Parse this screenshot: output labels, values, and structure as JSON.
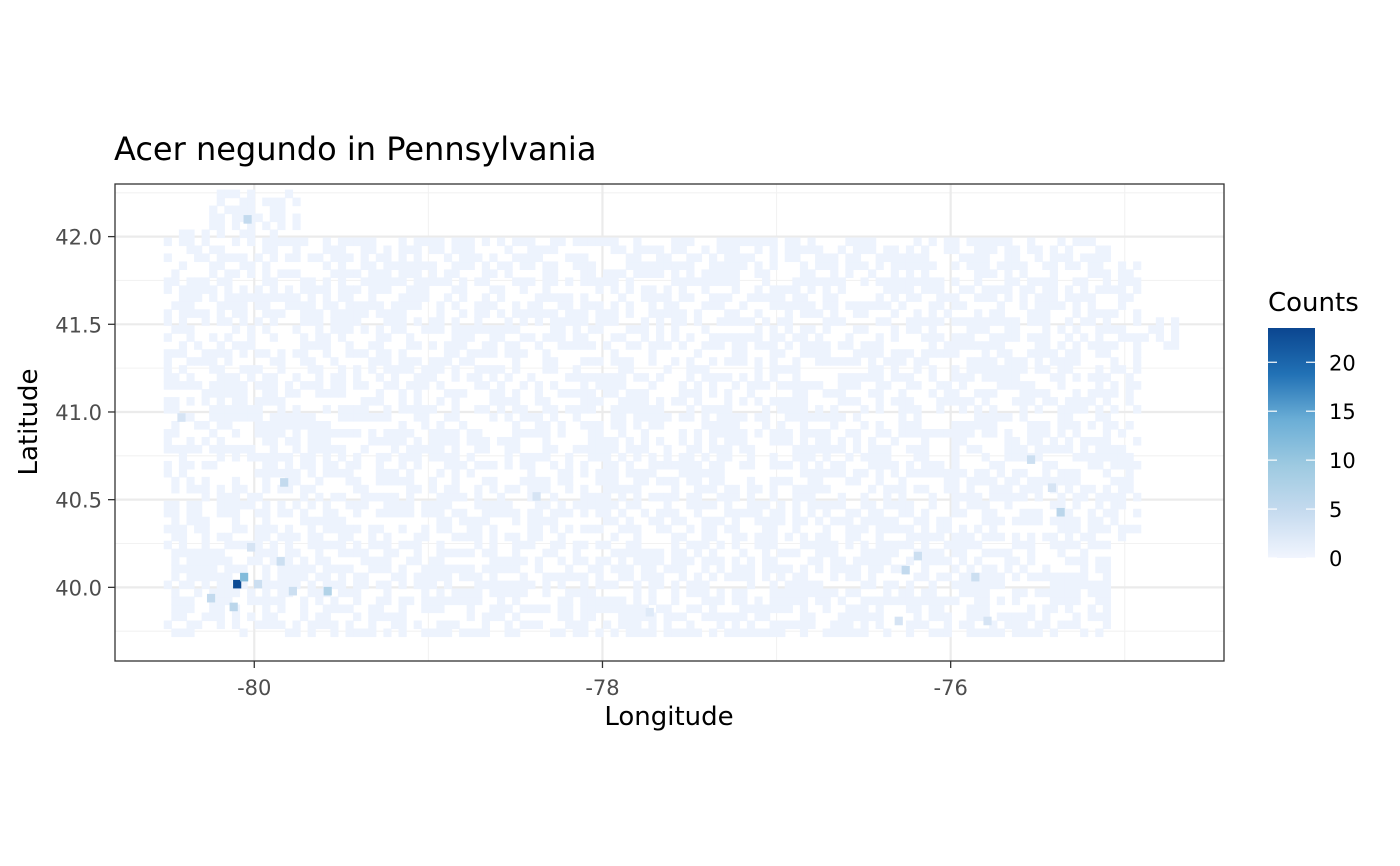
{
  "chart_data": {
    "type": "heatmap",
    "title": "Acer negundo in Pennsylvania",
    "xlabel": "Longitude",
    "ylabel": "Latitude",
    "xlim": [
      -80.8,
      -74.43
    ],
    "ylim": [
      39.58,
      42.3
    ],
    "x_ticks": [
      -80,
      -78,
      -76
    ],
    "x_tick_labels": [
      "-80",
      "-78",
      "-76"
    ],
    "y_ticks": [
      40.0,
      40.5,
      41.0,
      41.5,
      42.0
    ],
    "y_tick_labels": [
      "40.0",
      "40.5",
      "41.0",
      "41.5",
      "42.0"
    ],
    "grid": true,
    "bin_width": [
      0.0435,
      0.0455
    ],
    "region": {
      "x_range": [
        -80.52,
        -74.7
      ],
      "y_range": [
        39.72,
        42.26
      ],
      "background_count": 0.4,
      "fill_probability": 0.55
    },
    "hotspots": [
      {
        "x": -80.1,
        "y": 40.02,
        "count": 23
      },
      {
        "x": -80.06,
        "y": 40.06,
        "count": 12
      },
      {
        "x": -80.12,
        "y": 39.89,
        "count": 6
      },
      {
        "x": -80.25,
        "y": 39.94,
        "count": 5
      },
      {
        "x": -79.98,
        "y": 40.02,
        "count": 4
      },
      {
        "x": -79.58,
        "y": 39.98,
        "count": 7
      },
      {
        "x": -79.78,
        "y": 39.98,
        "count": 4
      },
      {
        "x": -79.85,
        "y": 40.15,
        "count": 4
      },
      {
        "x": -80.02,
        "y": 40.23,
        "count": 3
      },
      {
        "x": -79.83,
        "y": 40.6,
        "count": 5
      },
      {
        "x": -80.04,
        "y": 42.1,
        "count": 5
      },
      {
        "x": -78.38,
        "y": 40.52,
        "count": 3
      },
      {
        "x": -76.26,
        "y": 40.1,
        "count": 5
      },
      {
        "x": -76.19,
        "y": 40.18,
        "count": 4
      },
      {
        "x": -75.86,
        "y": 40.06,
        "count": 4
      },
      {
        "x": -75.54,
        "y": 40.73,
        "count": 4
      },
      {
        "x": -75.42,
        "y": 40.57,
        "count": 3
      },
      {
        "x": -75.37,
        "y": 40.43,
        "count": 6
      },
      {
        "x": -75.79,
        "y": 39.81,
        "count": 3
      },
      {
        "x": -76.3,
        "y": 39.81,
        "count": 3
      },
      {
        "x": -77.73,
        "y": 39.86,
        "count": 2
      },
      {
        "x": -80.42,
        "y": 40.97,
        "count": 3
      }
    ],
    "legend": {
      "title": "Counts",
      "position": "right",
      "min": 0,
      "max": 23.5,
      "ticks": [
        0,
        5,
        10,
        15,
        20
      ],
      "tick_labels": [
        "0",
        "5",
        "10",
        "15",
        "20"
      ],
      "colors": [
        "#f1f5fe",
        "#c6dbef",
        "#9ecae1",
        "#6baed6",
        "#2171b5",
        "#0b4690"
      ]
    }
  }
}
